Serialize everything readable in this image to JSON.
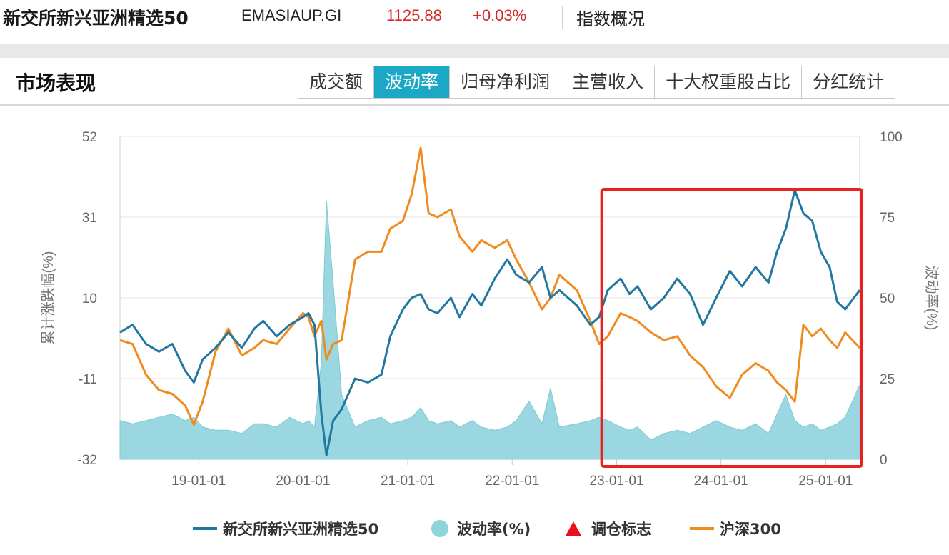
{
  "header": {
    "index_name": "新交所新兴亚洲精选50",
    "index_code": "EMASIAUP.GI",
    "price": "1125.88",
    "change_pct": "+0.03%",
    "overview_link": "指数概况",
    "price_color": "#d22a2a"
  },
  "section": {
    "title": "市场表现",
    "tabs": [
      {
        "label": "成交额",
        "active": false
      },
      {
        "label": "波动率",
        "active": true
      },
      {
        "label": "归母净利润",
        "active": false
      },
      {
        "label": "主营收入",
        "active": false
      },
      {
        "label": "十大权重股占比",
        "active": false
      },
      {
        "label": "分红统计",
        "active": false
      }
    ],
    "accent_color": "#1ba8c6"
  },
  "chart_data": {
    "type": "line",
    "title": "",
    "x_ticks": [
      "19-01-01",
      "20-01-01",
      "21-01-01",
      "22-01-01",
      "23-01-01",
      "24-01-01",
      "25-01-01"
    ],
    "x_range": [
      "2018-04-01",
      "2025-04-30"
    ],
    "left_axis": {
      "label": "累计涨跌幅(%)",
      "ticks": [
        "52",
        "31",
        "10",
        "-11",
        "-32"
      ],
      "range": [
        -32,
        52
      ]
    },
    "right_axis": {
      "label": "波动率(%)",
      "ticks": [
        "100",
        "75",
        "50",
        "25",
        "0"
      ],
      "range": [
        0,
        100
      ]
    },
    "legend_position": "bottom",
    "grid": "horizontal",
    "highlight_box": {
      "x_range": [
        "2022-11-15",
        "2025-04-30"
      ],
      "color": "#e8231f"
    },
    "series": [
      {
        "name": "新交所新兴亚洲精选50",
        "axis": "left",
        "style": "line",
        "color": "#2277a0",
        "points": [
          [
            "2018-04-01",
            1
          ],
          [
            "2018-05-15",
            3
          ],
          [
            "2018-07-01",
            -2
          ],
          [
            "2018-08-15",
            -4
          ],
          [
            "2018-10-01",
            -2
          ],
          [
            "2018-11-15",
            -9
          ],
          [
            "2018-12-15",
            -12
          ],
          [
            "2019-01-15",
            -6
          ],
          [
            "2019-03-01",
            -3
          ],
          [
            "2019-04-15",
            1
          ],
          [
            "2019-06-01",
            -3
          ],
          [
            "2019-07-15",
            2
          ],
          [
            "2019-08-15",
            4
          ],
          [
            "2019-10-01",
            0
          ],
          [
            "2019-11-15",
            3
          ],
          [
            "2020-01-01",
            5
          ],
          [
            "2020-01-20",
            6
          ],
          [
            "2020-02-10",
            3
          ],
          [
            "2020-03-05",
            -20
          ],
          [
            "2020-03-23",
            -31
          ],
          [
            "2020-04-15",
            -22
          ],
          [
            "2020-05-15",
            -19
          ],
          [
            "2020-07-01",
            -11
          ],
          [
            "2020-08-15",
            -12
          ],
          [
            "2020-10-01",
            -10
          ],
          [
            "2020-11-01",
            0
          ],
          [
            "2020-12-15",
            7
          ],
          [
            "2021-01-15",
            10
          ],
          [
            "2021-02-15",
            11
          ],
          [
            "2021-03-15",
            7
          ],
          [
            "2021-04-15",
            6
          ],
          [
            "2021-06-01",
            10
          ],
          [
            "2021-07-01",
            5
          ],
          [
            "2021-08-15",
            11
          ],
          [
            "2021-09-15",
            8
          ],
          [
            "2021-11-01",
            15
          ],
          [
            "2021-12-15",
            20
          ],
          [
            "2022-01-15",
            16
          ],
          [
            "2022-03-01",
            14
          ],
          [
            "2022-04-15",
            18
          ],
          [
            "2022-05-15",
            10
          ],
          [
            "2022-06-15",
            12
          ],
          [
            "2022-08-15",
            8
          ],
          [
            "2022-10-01",
            3
          ],
          [
            "2022-11-01",
            5
          ],
          [
            "2022-12-01",
            12
          ],
          [
            "2023-01-15",
            15
          ],
          [
            "2023-02-15",
            11
          ],
          [
            "2023-03-15",
            13
          ],
          [
            "2023-05-01",
            7
          ],
          [
            "2023-06-15",
            10
          ],
          [
            "2023-08-01",
            15
          ],
          [
            "2023-09-15",
            11
          ],
          [
            "2023-10-30",
            3
          ],
          [
            "2023-12-15",
            10
          ],
          [
            "2024-02-01",
            17
          ],
          [
            "2024-03-15",
            13
          ],
          [
            "2024-05-01",
            18
          ],
          [
            "2024-06-15",
            14
          ],
          [
            "2024-07-15",
            22
          ],
          [
            "2024-08-15",
            28
          ],
          [
            "2024-09-15",
            38
          ],
          [
            "2024-10-15",
            32
          ],
          [
            "2024-11-15",
            30
          ],
          [
            "2024-12-15",
            22
          ],
          [
            "2025-01-15",
            18
          ],
          [
            "2025-02-10",
            9
          ],
          [
            "2025-03-10",
            7
          ],
          [
            "2025-04-30",
            12
          ]
        ]
      },
      {
        "name": "波动率(%)",
        "axis": "right",
        "style": "area",
        "color": "#8fd3dd",
        "points": [
          [
            "2018-04-01",
            12
          ],
          [
            "2018-05-15",
            11
          ],
          [
            "2018-07-01",
            12
          ],
          [
            "2018-08-15",
            13
          ],
          [
            "2018-10-01",
            14
          ],
          [
            "2018-11-15",
            12
          ],
          [
            "2018-12-15",
            13
          ],
          [
            "2019-01-15",
            10
          ],
          [
            "2019-03-01",
            9
          ],
          [
            "2019-04-15",
            9
          ],
          [
            "2019-06-01",
            8
          ],
          [
            "2019-07-15",
            11
          ],
          [
            "2019-08-15",
            11
          ],
          [
            "2019-10-01",
            10
          ],
          [
            "2019-11-15",
            13
          ],
          [
            "2020-01-01",
            11
          ],
          [
            "2020-01-20",
            12
          ],
          [
            "2020-02-10",
            10
          ],
          [
            "2020-03-05",
            30
          ],
          [
            "2020-03-23",
            80
          ],
          [
            "2020-04-15",
            55
          ],
          [
            "2020-05-15",
            20
          ],
          [
            "2020-07-01",
            10
          ],
          [
            "2020-08-15",
            12
          ],
          [
            "2020-10-01",
            13
          ],
          [
            "2020-11-01",
            11
          ],
          [
            "2020-12-15",
            12
          ],
          [
            "2021-01-15",
            13
          ],
          [
            "2021-02-15",
            16
          ],
          [
            "2021-03-15",
            12
          ],
          [
            "2021-04-15",
            11
          ],
          [
            "2021-06-01",
            12
          ],
          [
            "2021-07-01",
            10
          ],
          [
            "2021-08-15",
            12
          ],
          [
            "2021-09-15",
            10
          ],
          [
            "2021-11-01",
            9
          ],
          [
            "2021-12-15",
            10
          ],
          [
            "2022-01-15",
            12
          ],
          [
            "2022-03-01",
            18
          ],
          [
            "2022-04-15",
            11
          ],
          [
            "2022-05-15",
            22
          ],
          [
            "2022-06-15",
            10
          ],
          [
            "2022-08-15",
            11
          ],
          [
            "2022-10-01",
            12
          ],
          [
            "2022-11-01",
            13
          ],
          [
            "2022-12-01",
            12
          ],
          [
            "2023-01-15",
            10
          ],
          [
            "2023-02-15",
            9
          ],
          [
            "2023-03-15",
            10
          ],
          [
            "2023-05-01",
            6
          ],
          [
            "2023-06-15",
            8
          ],
          [
            "2023-08-01",
            9
          ],
          [
            "2023-09-15",
            8
          ],
          [
            "2023-10-30",
            10
          ],
          [
            "2023-12-15",
            12
          ],
          [
            "2024-02-01",
            10
          ],
          [
            "2024-03-15",
            9
          ],
          [
            "2024-05-01",
            11
          ],
          [
            "2024-06-15",
            8
          ],
          [
            "2024-07-15",
            14
          ],
          [
            "2024-08-15",
            20
          ],
          [
            "2024-09-15",
            12
          ],
          [
            "2024-10-15",
            10
          ],
          [
            "2024-11-15",
            11
          ],
          [
            "2024-12-15",
            9
          ],
          [
            "2025-01-15",
            10
          ],
          [
            "2025-02-10",
            11
          ],
          [
            "2025-03-10",
            13
          ],
          [
            "2025-04-30",
            23
          ]
        ]
      },
      {
        "name": "沪深300",
        "axis": "left",
        "style": "line",
        "color": "#f08b1f",
        "points": [
          [
            "2018-04-01",
            -1
          ],
          [
            "2018-05-15",
            -2
          ],
          [
            "2018-07-01",
            -10
          ],
          [
            "2018-08-15",
            -14
          ],
          [
            "2018-10-01",
            -15
          ],
          [
            "2018-11-15",
            -18
          ],
          [
            "2018-12-15",
            -23
          ],
          [
            "2019-01-15",
            -17
          ],
          [
            "2019-03-01",
            -4
          ],
          [
            "2019-04-15",
            2
          ],
          [
            "2019-06-01",
            -5
          ],
          [
            "2019-07-15",
            -3
          ],
          [
            "2019-08-15",
            -1
          ],
          [
            "2019-10-01",
            -2
          ],
          [
            "2019-11-15",
            2
          ],
          [
            "2020-01-01",
            6
          ],
          [
            "2020-01-20",
            5
          ],
          [
            "2020-02-10",
            0
          ],
          [
            "2020-03-05",
            4
          ],
          [
            "2020-03-23",
            -6
          ],
          [
            "2020-04-15",
            -2
          ],
          [
            "2020-05-15",
            -1
          ],
          [
            "2020-07-01",
            20
          ],
          [
            "2020-08-15",
            22
          ],
          [
            "2020-10-01",
            22
          ],
          [
            "2020-11-01",
            28
          ],
          [
            "2020-12-15",
            30
          ],
          [
            "2021-01-15",
            37
          ],
          [
            "2021-02-15",
            49
          ],
          [
            "2021-03-15",
            32
          ],
          [
            "2021-04-15",
            31
          ],
          [
            "2021-06-01",
            33
          ],
          [
            "2021-07-01",
            26
          ],
          [
            "2021-08-15",
            22
          ],
          [
            "2021-09-15",
            25
          ],
          [
            "2021-11-01",
            23
          ],
          [
            "2021-12-15",
            25
          ],
          [
            "2022-01-15",
            20
          ],
          [
            "2022-03-01",
            14
          ],
          [
            "2022-04-15",
            7
          ],
          [
            "2022-05-15",
            10
          ],
          [
            "2022-06-15",
            16
          ],
          [
            "2022-08-15",
            12
          ],
          [
            "2022-10-01",
            4
          ],
          [
            "2022-11-01",
            -2
          ],
          [
            "2022-12-01",
            0
          ],
          [
            "2023-01-15",
            6
          ],
          [
            "2023-02-15",
            5
          ],
          [
            "2023-03-15",
            4
          ],
          [
            "2023-05-01",
            1
          ],
          [
            "2023-06-15",
            -1
          ],
          [
            "2023-08-01",
            0
          ],
          [
            "2023-09-15",
            -5
          ],
          [
            "2023-10-30",
            -8
          ],
          [
            "2023-12-15",
            -13
          ],
          [
            "2024-02-01",
            -16
          ],
          [
            "2024-03-15",
            -10
          ],
          [
            "2024-05-01",
            -7
          ],
          [
            "2024-06-15",
            -9
          ],
          [
            "2024-07-15",
            -12
          ],
          [
            "2024-08-15",
            -14
          ],
          [
            "2024-09-15",
            -17
          ],
          [
            "2024-10-15",
            3
          ],
          [
            "2024-11-15",
            0
          ],
          [
            "2024-12-15",
            2
          ],
          [
            "2025-01-15",
            -1
          ],
          [
            "2025-02-10",
            -3
          ],
          [
            "2025-03-10",
            1
          ],
          [
            "2025-04-30",
            -3
          ]
        ]
      }
    ],
    "legend": [
      {
        "label": "新交所新兴亚洲精选50",
        "marker": "line",
        "color": "#2277a0"
      },
      {
        "label": "波动率(%)",
        "marker": "circle",
        "color": "#8fd3dd"
      },
      {
        "label": "调仓标志",
        "marker": "triangle",
        "color": "#e8101c"
      },
      {
        "label": "沪深300",
        "marker": "line",
        "color": "#f08b1f"
      }
    ]
  }
}
